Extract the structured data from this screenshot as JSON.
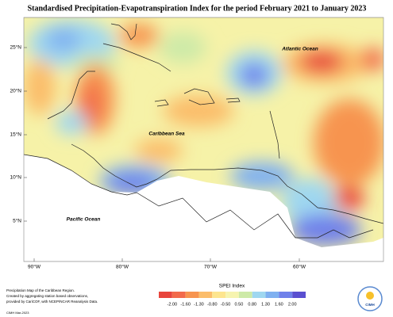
{
  "header": {
    "title": "Standardised Precipitation-Evapotranspiration Index for the period February 2021 to January 2023"
  },
  "map": {
    "labels": [
      "Atlantic Ocean",
      "Caribbean Sea",
      "Pacific Ocean"
    ],
    "lat_ticks": [
      "25°N",
      "20°N",
      "15°N",
      "10°N",
      "5°N"
    ],
    "lon_ticks": [
      "90°W",
      "80°W",
      "70°W",
      "60°W"
    ]
  },
  "footer": {
    "lines": [
      "Precipitation Map of the Caribbean Region.",
      "Created by aggregating station based observations,",
      "provided by CariCOF, with NCEP/NCAR Reanalysis Data."
    ],
    "credit": "CIMH Mar-2023"
  },
  "legend": {
    "title": "SPEI Index",
    "ticks": [
      "-2.00",
      "-1.60",
      "-1.30",
      "-0.80",
      "-0.50",
      "0.50",
      "0.80",
      "1.30",
      "1.60",
      "2.00"
    ],
    "colors": [
      "#e8453c",
      "#f26a4b",
      "#f7944f",
      "#fbbd6b",
      "#fde58f",
      "#f6f4b0",
      "#cdeaa8",
      "#9fd7f0",
      "#7fb0f0",
      "#6f80ea",
      "#5a4fd0"
    ]
  },
  "logo": {
    "text": "CIMH"
  }
}
